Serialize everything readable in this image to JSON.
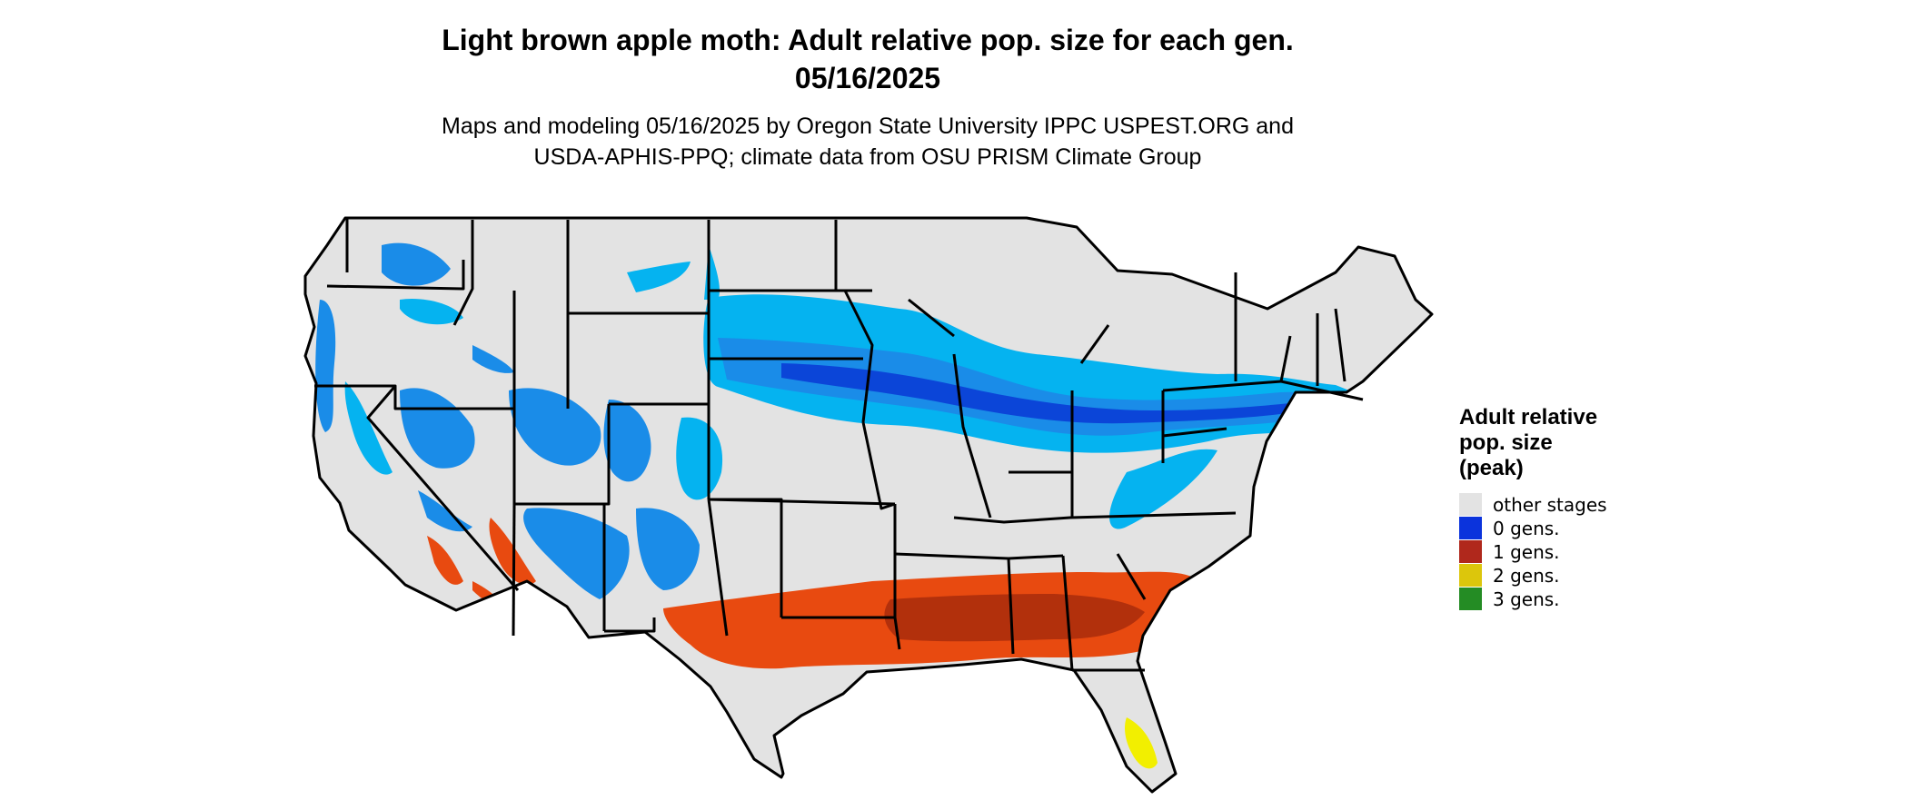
{
  "title": {
    "line1": "Light brown apple moth: Adult relative pop. size for each gen.",
    "line2": "05/16/2025"
  },
  "subtitle": {
    "line1": "Maps and modeling 05/16/2025 by Oregon State University IPPC USPEST.ORG and",
    "line2": "USDA-APHIS-PPQ; climate data from OSU PRISM Climate Group"
  },
  "map": {
    "region": "Contiguous United States",
    "boundaries": "state borders",
    "colors": {
      "land": "#e3e3e3",
      "border": "#000000",
      "light_blue": "#05b3f0",
      "mid_blue": "#1a8ce8",
      "dark_blue": "#0b45d8",
      "orange": "#e84a10",
      "dark_red": "#b2300c",
      "yellow": "#f2ef00"
    }
  },
  "legend": {
    "title_line1": "Adult relative",
    "title_line2": "pop. size",
    "title_line3": "(peak)",
    "items": [
      {
        "label": "other stages",
        "color": "#e3e3e3"
      },
      {
        "label": "0 gens.",
        "color": "#0b33dc"
      },
      {
        "label": "1 gens.",
        "color": "#b0281c"
      },
      {
        "label": "2 gens.",
        "color": "#dcc60c"
      },
      {
        "label": "3 gens.",
        "color": "#248c24"
      }
    ]
  }
}
